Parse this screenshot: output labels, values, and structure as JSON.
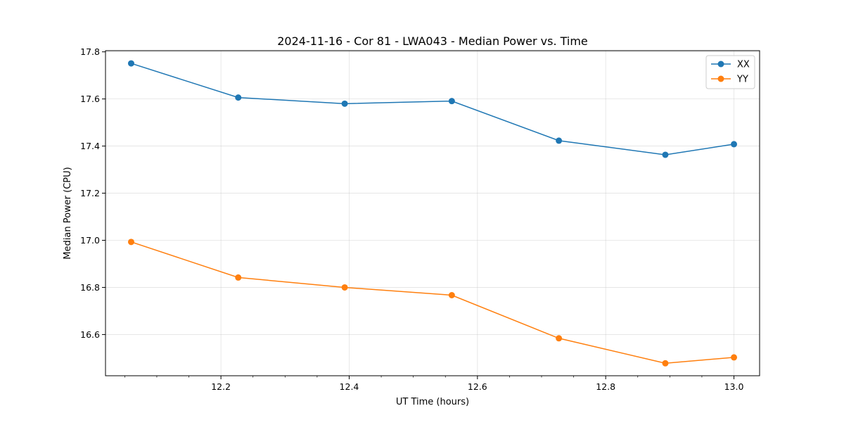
{
  "chart_data": {
    "type": "line",
    "title": "2024-11-16 - Cor 81 - LWA043 - Median Power vs. Time",
    "xlabel": "UT Time (hours)",
    "ylabel": "Median Power (CPU)",
    "xlim": [
      12.02,
      13.04
    ],
    "ylim": [
      16.425,
      17.805
    ],
    "xticks": [
      12.2,
      12.4,
      12.6,
      12.8,
      13.0
    ],
    "xtick_labels": [
      "12.2",
      "12.4",
      "12.6",
      "12.8",
      "13.0"
    ],
    "xminor_step": 0.05,
    "yticks": [
      16.6,
      16.8,
      17.0,
      17.2,
      17.4,
      17.6,
      17.8
    ],
    "ytick_labels": [
      "16.6",
      "16.8",
      "17.0",
      "17.2",
      "17.4",
      "17.6",
      "17.8"
    ],
    "grid": true,
    "legend_position": "top-right",
    "x": [
      12.06,
      12.227,
      12.393,
      12.56,
      12.727,
      12.893,
      13.0
    ],
    "series": [
      {
        "name": "XX",
        "color": "#1f77b4",
        "values": [
          17.751,
          17.606,
          17.58,
          17.591,
          17.423,
          17.363,
          17.408
        ]
      },
      {
        "name": "YY",
        "color": "#ff7f0e",
        "values": [
          16.993,
          16.842,
          16.8,
          16.767,
          16.584,
          16.478,
          16.503
        ]
      }
    ]
  }
}
